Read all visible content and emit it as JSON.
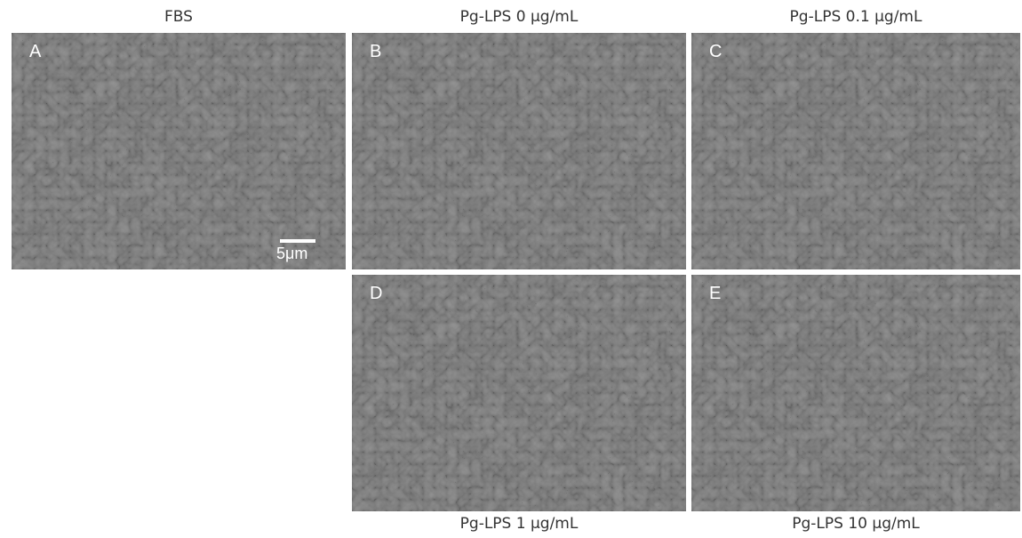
{
  "panels": [
    {
      "letter": "A",
      "caption": "FBS",
      "scale_bar": "5μm"
    },
    {
      "letter": "B",
      "caption": "Pg-LPS 0 μg/mL"
    },
    {
      "letter": "C",
      "caption": "Pg-LPS 0.1 μg/mL"
    },
    {
      "letter": "D",
      "caption": "Pg-LPS 1 μg/mL"
    },
    {
      "letter": "E",
      "caption": "Pg-LPS 10 μg/mL"
    }
  ]
}
